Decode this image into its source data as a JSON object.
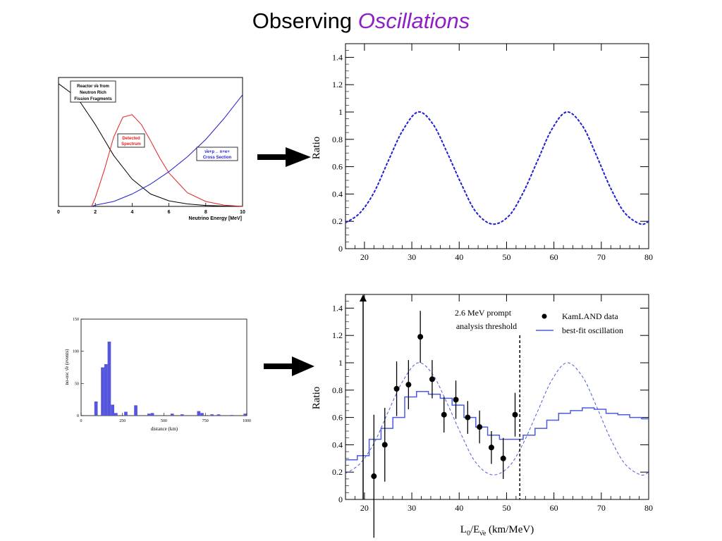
{
  "title": {
    "main": "Observing",
    "emphasis": "Oscillations",
    "emphasis_color": "#8e1fc7"
  },
  "colors": {
    "black": "#000000",
    "red": "#e32020",
    "blue": "#1f1fd6",
    "hist": "#5555dd",
    "fit": "#4a5be0"
  },
  "chart_data": [
    {
      "id": "spectrum",
      "type": "line",
      "xlabel": "Neutrino Energy [MeV]",
      "xlim": [
        0,
        10
      ],
      "ylim": [
        0,
        1
      ],
      "x_ticks": [
        "0",
        "2",
        "4",
        "6",
        "8",
        "10"
      ],
      "series": [
        {
          "name": "Reactor ν̄e from Neutron Rich Fission Fragments",
          "color": "#000000",
          "x": [
            0,
            1,
            2,
            3,
            4,
            5,
            6,
            7,
            8,
            9,
            10
          ],
          "y": [
            0.99,
            0.88,
            0.66,
            0.41,
            0.22,
            0.1,
            0.045,
            0.02,
            0.008,
            0.003,
            0.001
          ]
        },
        {
          "name": "Detected Spectrum",
          "color": "#e32020",
          "x": [
            1.8,
            2,
            2.5,
            3,
            3.5,
            4,
            4.5,
            5,
            5.5,
            6,
            7,
            8,
            9,
            10
          ],
          "y": [
            0,
            0.07,
            0.3,
            0.56,
            0.72,
            0.74,
            0.66,
            0.53,
            0.39,
            0.27,
            0.11,
            0.04,
            0.01,
            0
          ]
        },
        {
          "name": "ν̄e+p→n+e+ Cross Section",
          "color": "#1f1fd6",
          "x": [
            1.8,
            2,
            3,
            4,
            5,
            6,
            7,
            8,
            9,
            10
          ],
          "y": [
            0,
            0.01,
            0.04,
            0.1,
            0.18,
            0.28,
            0.4,
            0.54,
            0.71,
            0.9
          ]
        }
      ],
      "annotations": [
        {
          "lines": [
            "Reactor ν̄e from",
            "Neutron Rich",
            "Fission Fragments"
          ],
          "color": "#000000"
        },
        {
          "lines": [
            "Detected",
            "Spectrum"
          ],
          "color": "#e32020"
        },
        {
          "lines": [
            "ν̄e+p→ n+e+",
            "Cross Section"
          ],
          "color": "#1f1fd6"
        }
      ]
    },
    {
      "id": "distance",
      "type": "bar",
      "xlabel": "distance (km)",
      "ylabel": "no-osc ν̄e (events)",
      "xlim": [
        0,
        1000
      ],
      "ylim": [
        0,
        150
      ],
      "x_ticks": [
        "0",
        "250",
        "500",
        "750",
        "1000"
      ],
      "y_ticks": [
        "0",
        "50",
        "100",
        "150"
      ],
      "bin_width": 20,
      "bins": [
        {
          "x": 80,
          "y": 22
        },
        {
          "x": 120,
          "y": 75
        },
        {
          "x": 140,
          "y": 80
        },
        {
          "x": 160,
          "y": 115
        },
        {
          "x": 180,
          "y": 17
        },
        {
          "x": 200,
          "y": 4
        },
        {
          "x": 260,
          "y": 6
        },
        {
          "x": 320,
          "y": 16
        },
        {
          "x": 400,
          "y": 3
        },
        {
          "x": 420,
          "y": 4
        },
        {
          "x": 540,
          "y": 3
        },
        {
          "x": 600,
          "y": 2
        },
        {
          "x": 700,
          "y": 7
        },
        {
          "x": 720,
          "y": 4
        },
        {
          "x": 780,
          "y": 2
        },
        {
          "x": 820,
          "y": 2
        },
        {
          "x": 900,
          "y": 1
        },
        {
          "x": 980,
          "y": 3
        }
      ]
    },
    {
      "id": "ratio-theory",
      "type": "line",
      "ylabel": "Ratio",
      "xlim": [
        16,
        80
      ],
      "ylim": [
        0,
        1.5
      ],
      "x_ticks": [
        "20",
        "30",
        "40",
        "50",
        "60",
        "70",
        "80"
      ],
      "y_ticks": [
        "0",
        "0.2",
        "0.4",
        "0.6",
        "0.8",
        "1",
        "1.2",
        "1.4"
      ],
      "series": [
        {
          "name": "",
          "style": "dashed",
          "color": "#1f1fd6",
          "x": [
            16,
            19,
            22,
            25,
            28,
            31.3,
            34.5,
            37.5,
            40.5,
            43.5,
            47,
            50.5,
            53.5,
            56.5,
            59.5,
            62.7,
            66,
            69,
            72,
            75,
            78.3,
            80
          ],
          "y": [
            0.19,
            0.26,
            0.41,
            0.64,
            0.86,
            1.0,
            0.91,
            0.7,
            0.47,
            0.27,
            0.18,
            0.24,
            0.41,
            0.64,
            0.87,
            1.0,
            0.9,
            0.68,
            0.44,
            0.26,
            0.18,
            0.2
          ]
        }
      ]
    },
    {
      "id": "ratio-data",
      "type": "scatter",
      "xlabel": "L0/Eν̄e (km/MeV)",
      "ylabel": "Ratio",
      "xlim": [
        16,
        80
      ],
      "ylim": [
        0,
        1.5
      ],
      "x_ticks": [
        "20",
        "30",
        "40",
        "50",
        "60",
        "70",
        "80"
      ],
      "y_ticks": [
        "0",
        "0.2",
        "0.4",
        "0.6",
        "0.8",
        "1",
        "1.2",
        "1.4"
      ],
      "threshold_x": 52.8,
      "threshold_label": [
        "2.6 MeV prompt",
        "analysis threshold"
      ],
      "legend": {
        "placement": "top-right",
        "data_label": "KamLAND data",
        "fit_label": "best-fit oscillation"
      },
      "points": [
        {
          "x": 22,
          "y": 0.17,
          "err": 0.45
        },
        {
          "x": 24.3,
          "y": 0.4,
          "err": 0.27
        },
        {
          "x": 26.8,
          "y": 0.81,
          "err": 0.2
        },
        {
          "x": 29.3,
          "y": 0.84,
          "err": 0.18
        },
        {
          "x": 31.8,
          "y": 1.19,
          "err": 0.19
        },
        {
          "x": 34.3,
          "y": 0.88,
          "err": 0.14
        },
        {
          "x": 36.8,
          "y": 0.62,
          "err": 0.13
        },
        {
          "x": 39.3,
          "y": 0.73,
          "err": 0.14
        },
        {
          "x": 41.8,
          "y": 0.6,
          "err": 0.12
        },
        {
          "x": 44.3,
          "y": 0.53,
          "err": 0.12
        },
        {
          "x": 46.8,
          "y": 0.38,
          "err": 0.12
        },
        {
          "x": 49.3,
          "y": 0.3,
          "err": 0.15
        },
        {
          "x": 51.8,
          "y": 0.62,
          "err": 0.16
        }
      ],
      "fit_steps": {
        "edges": [
          16,
          18.5,
          21,
          23.5,
          26,
          28.5,
          31,
          33.5,
          36,
          38.5,
          41,
          43.5,
          46,
          48.5,
          51,
          53.5,
          56,
          58.5,
          61,
          63.5,
          66,
          68.5,
          71,
          73.5,
          76,
          78.5,
          80
        ],
        "values": [
          0.29,
          0.32,
          0.44,
          0.52,
          0.6,
          0.75,
          0.79,
          0.77,
          0.74,
          0.69,
          0.6,
          0.53,
          0.47,
          0.44,
          0.44,
          0.47,
          0.52,
          0.58,
          0.63,
          0.65,
          0.67,
          0.66,
          0.63,
          0.62,
          0.6,
          0.59
        ]
      },
      "theory_dashed": {
        "x": [
          16,
          19,
          22,
          25,
          28,
          31.3,
          34.5,
          37.5,
          40.5,
          43.5,
          47,
          50.5,
          53.5,
          56.5,
          59.5,
          62.7,
          66,
          69,
          72,
          75,
          78.3,
          80
        ],
        "y": [
          0.19,
          0.26,
          0.41,
          0.64,
          0.86,
          1.0,
          0.91,
          0.7,
          0.47,
          0.27,
          0.18,
          0.24,
          0.41,
          0.64,
          0.87,
          1.0,
          0.9,
          0.68,
          0.44,
          0.26,
          0.18,
          0.2
        ]
      }
    }
  ]
}
